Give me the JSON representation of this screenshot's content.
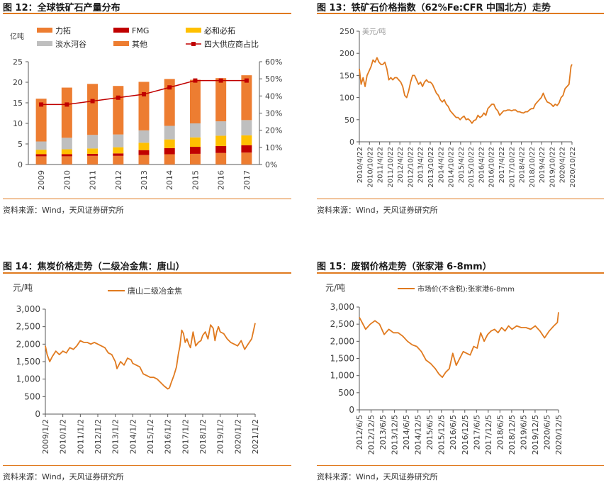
{
  "panels": {
    "p12": {
      "title": "图 12：全球铁矿石产量分布",
      "source": "资料来源：Wind，天风证券研究所"
    },
    "p13": {
      "title": "图 13：铁矿石价格指数（62%Fe:CFR 中国北方）走势",
      "source": "资料来源：Wind，天风证券研究所"
    },
    "p14": {
      "title": "图 14：焦炭价格走势（二级冶金焦：唐山）",
      "source": "资料来源：Wind，天风证券研究所"
    },
    "p15": {
      "title": "图 15：废钢价格走势（张家港 6-8mm）",
      "source": "资料来源：Wind，天风证券研究所"
    }
  },
  "colors": {
    "accent": "#e07a1f",
    "lio": "#ed7d31",
    "fmg": "#c00000",
    "bhp": "#ffc000",
    "vale": "#bfbfbf",
    "other": "#ed7d31",
    "share": "#c00000"
  },
  "chart_data": [
    {
      "id": "p12",
      "type": "bar",
      "stacked": true,
      "ylabel_left": "亿吨",
      "ylim_left": [
        0,
        25
      ],
      "yticks_left": [
        "0",
        "5",
        "10",
        "15",
        "20",
        "25"
      ],
      "ylim_right": [
        0,
        60
      ],
      "yticks_right": [
        "0%",
        "10%",
        "20%",
        "30%",
        "40%",
        "50%",
        "60%"
      ],
      "categories": [
        "2009",
        "2010",
        "2011",
        "2012",
        "2013",
        "2014",
        "2015",
        "2016",
        "2017"
      ],
      "series": [
        {
          "name": "力拓",
          "values": [
            2.0,
            2.0,
            2.1,
            2.1,
            2.3,
            2.5,
            2.6,
            2.8,
            2.9
          ]
        },
        {
          "name": "FMG",
          "values": [
            0.5,
            0.5,
            0.5,
            0.6,
            1.2,
            1.5,
            1.7,
            1.7,
            1.8
          ]
        },
        {
          "name": "必和必拓",
          "values": [
            1.1,
            1.2,
            1.3,
            1.5,
            1.8,
            2.1,
            2.3,
            2.5,
            2.4
          ]
        },
        {
          "name": "淡水河谷",
          "values": [
            2.0,
            2.8,
            3.3,
            3.1,
            3.0,
            3.3,
            3.4,
            3.5,
            3.7
          ]
        },
        {
          "name": "其他",
          "values": [
            10.4,
            12.2,
            12.4,
            11.8,
            11.8,
            11.4,
            10.6,
            10.5,
            10.9
          ]
        }
      ],
      "line_series": {
        "name": "四大供应商占比",
        "axis": "right",
        "values": [
          35,
          35,
          37,
          39,
          41,
          45,
          49,
          49,
          49
        ]
      }
    },
    {
      "id": "p13",
      "type": "line",
      "ylabel": "美元/吨",
      "ylim": [
        0,
        250
      ],
      "yticks": [
        "0",
        "50",
        "100",
        "150",
        "200",
        "250"
      ],
      "xticks": [
        "2010/4/22",
        "2010/10/22",
        "2011/4/22",
        "2011/10/22",
        "2012/4/22",
        "2012/10/22",
        "2013/4/22",
        "2013/10/22",
        "2014/4/22",
        "2014/10/22",
        "2015/4/22",
        "2015/10/22",
        "2016/4/22",
        "2016/10/22",
        "2017/4/22",
        "2017/10/22",
        "2018/4/22",
        "2018/10/22",
        "2019/4/22",
        "2019/10/22",
        "2020/4/22",
        "2020/10/22"
      ],
      "x": [
        2010.31,
        2010.4,
        2010.5,
        2010.6,
        2010.7,
        2010.8,
        2010.9,
        2011.0,
        2011.1,
        2011.2,
        2011.3,
        2011.4,
        2011.5,
        2011.6,
        2011.7,
        2011.8,
        2011.9,
        2012.0,
        2012.1,
        2012.2,
        2012.3,
        2012.4,
        2012.5,
        2012.6,
        2012.7,
        2012.8,
        2012.9,
        2013.0,
        2013.1,
        2013.2,
        2013.3,
        2013.4,
        2013.5,
        2013.6,
        2013.7,
        2013.8,
        2013.9,
        2014.0,
        2014.1,
        2014.2,
        2014.3,
        2014.4,
        2014.5,
        2014.6,
        2014.7,
        2014.8,
        2014.9,
        2015.0,
        2015.1,
        2015.2,
        2015.3,
        2015.4,
        2015.5,
        2015.6,
        2015.7,
        2015.8,
        2015.9,
        2016.0,
        2016.1,
        2016.2,
        2016.3,
        2016.4,
        2016.5,
        2016.6,
        2016.7,
        2016.8,
        2016.9,
        2017.0,
        2017.1,
        2017.2,
        2017.3,
        2017.4,
        2017.5,
        2017.6,
        2017.7,
        2017.8,
        2017.9,
        2018.0,
        2018.1,
        2018.2,
        2018.3,
        2018.4,
        2018.5,
        2018.6,
        2018.7,
        2018.8,
        2018.9,
        2019.0,
        2019.1,
        2019.2,
        2019.3,
        2019.4,
        2019.5,
        2019.6,
        2019.7,
        2019.8,
        2019.9,
        2020.0,
        2020.1,
        2020.2,
        2020.3,
        2020.4,
        2020.5,
        2020.6,
        2020.7,
        2020.8,
        2020.9,
        2021.0,
        2021.05
      ],
      "y": [
        165,
        130,
        145,
        125,
        150,
        160,
        170,
        185,
        180,
        190,
        180,
        175,
        175,
        180,
        165,
        140,
        145,
        140,
        145,
        145,
        140,
        135,
        125,
        105,
        100,
        115,
        135,
        150,
        150,
        140,
        130,
        135,
        125,
        135,
        140,
        135,
        135,
        130,
        120,
        110,
        105,
        95,
        90,
        95,
        85,
        80,
        70,
        65,
        60,
        55,
        55,
        50,
        55,
        58,
        50,
        52,
        48,
        42,
        48,
        50,
        60,
        55,
        58,
        65,
        60,
        75,
        80,
        85,
        85,
        75,
        70,
        60,
        65,
        70,
        70,
        72,
        72,
        70,
        72,
        72,
        68,
        68,
        66,
        65,
        68,
        68,
        72,
        75,
        75,
        85,
        90,
        95,
        100,
        110,
        98,
        90,
        88,
        85,
        80,
        85,
        82,
        88,
        100,
        105,
        120,
        125,
        130,
        170,
        175
      ]
    },
    {
      "id": "p14",
      "type": "line",
      "ylabel": "元/吨",
      "legend": "唐山二级冶金焦",
      "ylim": [
        0,
        3000
      ],
      "yticks": [
        "0",
        "500",
        "1,000",
        "1,500",
        "2,000",
        "2,500",
        "3,000"
      ],
      "xticks": [
        "2009/1/2",
        "2010/1/2",
        "2011/1/2",
        "2012/1/2",
        "2013/1/2",
        "2014/1/2",
        "2015/1/2",
        "2016/1/2",
        "2017/1/2",
        "2018/1/2",
        "2019/1/2",
        "2020/1/2",
        "2021/1/2"
      ],
      "x": [
        2009.0,
        2009.1,
        2009.25,
        2009.4,
        2009.6,
        2009.8,
        2010.0,
        2010.2,
        2010.4,
        2010.6,
        2010.8,
        2011.0,
        2011.2,
        2011.4,
        2011.6,
        2011.8,
        2012.0,
        2012.2,
        2012.4,
        2012.6,
        2012.8,
        2013.0,
        2013.1,
        2013.3,
        2013.5,
        2013.7,
        2013.9,
        2014.0,
        2014.2,
        2014.4,
        2014.6,
        2014.8,
        2015.0,
        2015.2,
        2015.4,
        2015.6,
        2015.8,
        2016.0,
        2016.1,
        2016.2,
        2016.35,
        2016.5,
        2016.6,
        2016.7,
        2016.8,
        2016.9,
        2017.0,
        2017.1,
        2017.2,
        2017.3,
        2017.45,
        2017.6,
        2017.75,
        2017.9,
        2018.0,
        2018.15,
        2018.3,
        2018.45,
        2018.6,
        2018.7,
        2018.8,
        2018.9,
        2019.0,
        2019.2,
        2019.4,
        2019.6,
        2019.8,
        2020.0,
        2020.2,
        2020.4,
        2020.6,
        2020.8,
        2021.0
      ],
      "y": [
        1950,
        1700,
        1500,
        1650,
        1800,
        1700,
        1800,
        1750,
        1900,
        1850,
        1950,
        2100,
        2050,
        2050,
        2000,
        2050,
        2000,
        1950,
        1900,
        1750,
        1700,
        1500,
        1300,
        1500,
        1400,
        1600,
        1550,
        1450,
        1400,
        1350,
        1150,
        1100,
        1050,
        1050,
        1000,
        900,
        800,
        720,
        750,
        900,
        1100,
        1350,
        1700,
        1950,
        2400,
        2300,
        2050,
        2150,
        2000,
        1900,
        2350,
        1950,
        2050,
        2100,
        2250,
        2350,
        2150,
        2550,
        2450,
        2100,
        2350,
        2500,
        2350,
        2300,
        2150,
        2050,
        2000,
        1950,
        2100,
        1850,
        2000,
        2150,
        2600
      ]
    },
    {
      "id": "p15",
      "type": "line",
      "ylabel": "元/吨",
      "legend": "市场价(不含税):张家港6-8mm",
      "ylim": [
        0,
        3000
      ],
      "yticks": [
        "0",
        "500",
        "1,000",
        "1,500",
        "2,000",
        "2,500",
        "3,000"
      ],
      "xticks": [
        "2012/6/5",
        "2012/12/5",
        "2013/6/5",
        "2013/12/5",
        "2014/6/5",
        "2014/12/5",
        "2015/6/5",
        "2015/12/5",
        "2016/6/5",
        "2016/12/5",
        "2017/6/5",
        "2017/12/5",
        "2018/6/5",
        "2018/12/5",
        "2019/6/5",
        "2019/12/5",
        "2020/6/5",
        "2020/12/5"
      ],
      "x": [
        2012.43,
        2012.55,
        2012.7,
        2012.9,
        2013.1,
        2013.3,
        2013.5,
        2013.7,
        2013.9,
        2014.1,
        2014.3,
        2014.5,
        2014.7,
        2014.9,
        2015.1,
        2015.3,
        2015.5,
        2015.7,
        2015.85,
        2016.0,
        2016.15,
        2016.3,
        2016.45,
        2016.6,
        2016.75,
        2016.9,
        2017.05,
        2017.2,
        2017.35,
        2017.5,
        2017.65,
        2017.8,
        2017.95,
        2018.1,
        2018.25,
        2018.4,
        2018.55,
        2018.7,
        2018.85,
        2019.0,
        2019.2,
        2019.4,
        2019.6,
        2019.8,
        2020.0,
        2020.2,
        2020.4,
        2020.6,
        2020.8,
        2020.95,
        2021.0
      ],
      "y": [
        2700,
        2550,
        2350,
        2500,
        2600,
        2500,
        2200,
        2350,
        2250,
        2250,
        2150,
        2000,
        1900,
        1850,
        1700,
        1450,
        1350,
        1200,
        1050,
        950,
        1100,
        1200,
        1650,
        1300,
        1500,
        1700,
        1650,
        1600,
        1850,
        1800,
        2250,
        2000,
        2200,
        2300,
        2350,
        2250,
        2400,
        2300,
        2450,
        2350,
        2450,
        2400,
        2400,
        2350,
        2450,
        2300,
        2100,
        2300,
        2450,
        2550,
        2850
      ]
    }
  ]
}
